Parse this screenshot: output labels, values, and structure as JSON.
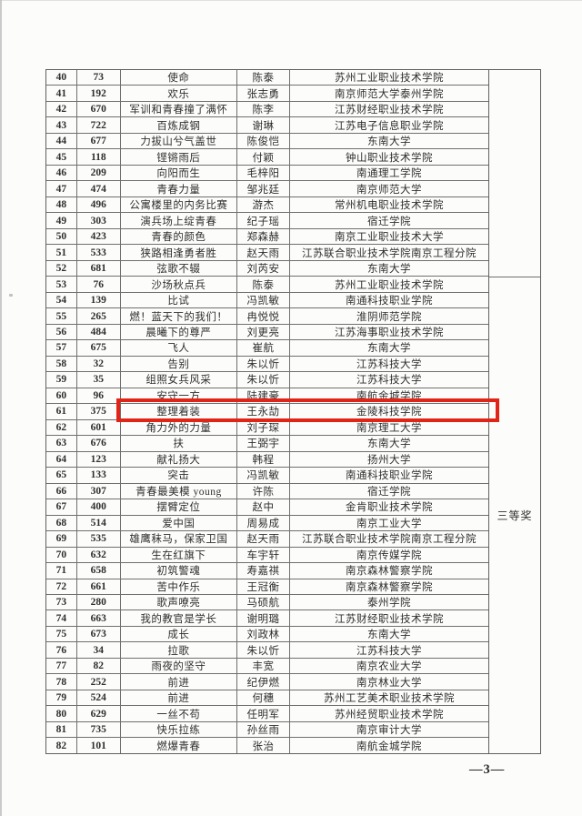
{
  "document": {
    "page_number": "—3—"
  },
  "table": {
    "highlight": {
      "row_seq": "61",
      "color": "#e02417"
    },
    "award_sections": [
      {
        "label": "",
        "row_span": 13
      },
      {
        "label": "三等奖",
        "row_span": 30
      }
    ],
    "rows": [
      {
        "seq": "40",
        "no": "73",
        "title": "使命",
        "author": "陈泰",
        "org": "苏州工业职业技术学院"
      },
      {
        "seq": "41",
        "no": "192",
        "title": "欢乐",
        "author": "张志勇",
        "org": "南京师范大学泰州学院"
      },
      {
        "seq": "42",
        "no": "670",
        "title": "军训和青春撞了满怀",
        "author": "陈李",
        "org": "江苏财经职业技术学院"
      },
      {
        "seq": "43",
        "no": "722",
        "title": "百炼成钢",
        "author": "谢琳",
        "org": "江苏电子信息职业学院"
      },
      {
        "seq": "44",
        "no": "677",
        "title": "力拔山兮气盖世",
        "author": "陈俊恺",
        "org": "东南大学"
      },
      {
        "seq": "45",
        "no": "118",
        "title": "铿锵雨后",
        "author": "付颖",
        "org": "钟山职业技术学院"
      },
      {
        "seq": "46",
        "no": "209",
        "title": "向阳而生",
        "author": "毛梓阳",
        "org": "南通理工学院"
      },
      {
        "seq": "47",
        "no": "474",
        "title": "青春力量",
        "author": "邹兆廷",
        "org": "南京师范大学"
      },
      {
        "seq": "48",
        "no": "496",
        "title": "公寓楼里的内务比赛",
        "author": "游杰",
        "org": "常州机电职业技术学院"
      },
      {
        "seq": "49",
        "no": "303",
        "title": "演兵场上绽青春",
        "author": "纪子瑶",
        "org": "宿迁学院"
      },
      {
        "seq": "50",
        "no": "423",
        "title": "青春的颜色",
        "author": "郑森赫",
        "org": "南京工业职业技术大学"
      },
      {
        "seq": "51",
        "no": "533",
        "title": "狭路相逢勇者胜",
        "author": "赵天雨",
        "org": "江苏联合职业技术学院南京工程分院"
      },
      {
        "seq": "52",
        "no": "681",
        "title": "弦歌不辍",
        "author": "刘芮安",
        "org": "东南大学"
      },
      {
        "seq": "53",
        "no": "76",
        "title": "沙场秋点兵",
        "author": "陈泰",
        "org": "苏州工业职业技术学院"
      },
      {
        "seq": "54",
        "no": "139",
        "title": "比试",
        "author": "冯凯敏",
        "org": "南通科技职业学院"
      },
      {
        "seq": "55",
        "no": "265",
        "title": "燃！蓝天下的我们！",
        "author": "冉悦悦",
        "org": "淮阴师范学院"
      },
      {
        "seq": "56",
        "no": "484",
        "title": "晨曦下的尊严",
        "author": "刘更亮",
        "org": "江苏海事职业技术学院"
      },
      {
        "seq": "57",
        "no": "675",
        "title": "飞人",
        "author": "崔航",
        "org": "东南大学"
      },
      {
        "seq": "58",
        "no": "32",
        "title": "告别",
        "author": "朱以忻",
        "org": "江苏科技大学"
      },
      {
        "seq": "59",
        "no": "35",
        "title": "组照女兵风采",
        "author": "朱以忻",
        "org": "江苏科技大学"
      },
      {
        "seq": "60",
        "no": "96",
        "title": "安守一方",
        "author": "陆建豪",
        "org": "南航金城学院"
      },
      {
        "seq": "61",
        "no": "375",
        "title": "整理着装",
        "author": "王永劼",
        "org": "金陵科技学院"
      },
      {
        "seq": "62",
        "no": "601",
        "title": "角力外的力量",
        "author": "刘子琛",
        "org": "南京理工大学"
      },
      {
        "seq": "63",
        "no": "676",
        "title": "扶",
        "author": "王弼宇",
        "org": "东南大学"
      },
      {
        "seq": "64",
        "no": "123",
        "title": "献礼扬大",
        "author": "韩程",
        "org": "扬州大学"
      },
      {
        "seq": "65",
        "no": "133",
        "title": "突击",
        "author": "冯凯敏",
        "org": "南通科技职业学院"
      },
      {
        "seq": "66",
        "no": "307",
        "title": "青春最美模 young",
        "author": "许陈",
        "org": "宿迁学院"
      },
      {
        "seq": "67",
        "no": "400",
        "title": "摆臂定位",
        "author": "赵中",
        "org": "金肯职业技术学院"
      },
      {
        "seq": "68",
        "no": "514",
        "title": "爱中国",
        "author": "周易成",
        "org": "南京工业大学"
      },
      {
        "seq": "69",
        "no": "535",
        "title": "雄鹰秣马，保家卫国",
        "author": "赵天雨",
        "org": "江苏联合职业技术学院南京工程分院"
      },
      {
        "seq": "70",
        "no": "632",
        "title": "生在红旗下",
        "author": "车宇轩",
        "org": "南京传媒学院"
      },
      {
        "seq": "71",
        "no": "658",
        "title": "初筑警魂",
        "author": "寿嘉祺",
        "org": "南京森林警察学院"
      },
      {
        "seq": "72",
        "no": "661",
        "title": "苦中作乐",
        "author": "王冠衡",
        "org": "南京森林警察学院"
      },
      {
        "seq": "73",
        "no": "280",
        "title": "歌声嘹亮",
        "author": "马硕航",
        "org": "泰州学院"
      },
      {
        "seq": "74",
        "no": "663",
        "title": "我的教官是学长",
        "author": "谢明璐",
        "org": "江苏财经职业技术学院"
      },
      {
        "seq": "75",
        "no": "673",
        "title": "成长",
        "author": "刘政林",
        "org": "东南大学"
      },
      {
        "seq": "76",
        "no": "34",
        "title": "拉歌",
        "author": "朱以忻",
        "org": "江苏科技大学"
      },
      {
        "seq": "77",
        "no": "82",
        "title": "雨夜的坚守",
        "author": "丰宽",
        "org": "南京农业大学"
      },
      {
        "seq": "78",
        "no": "252",
        "title": "前进",
        "author": "纪伊燃",
        "org": "南京林业大学"
      },
      {
        "seq": "79",
        "no": "524",
        "title": "前进",
        "author": "何穗",
        "org": "苏州工艺美术职业技术学院"
      },
      {
        "seq": "80",
        "no": "629",
        "title": "一丝不苟",
        "author": "任明军",
        "org": "苏州经贸职业技术学院"
      },
      {
        "seq": "81",
        "no": "735",
        "title": "快乐拉练",
        "author": "孙丝雨",
        "org": "南京审计大学"
      },
      {
        "seq": "82",
        "no": "101",
        "title": "燃爆青春",
        "author": "张治",
        "org": "南航金城学院"
      }
    ]
  }
}
